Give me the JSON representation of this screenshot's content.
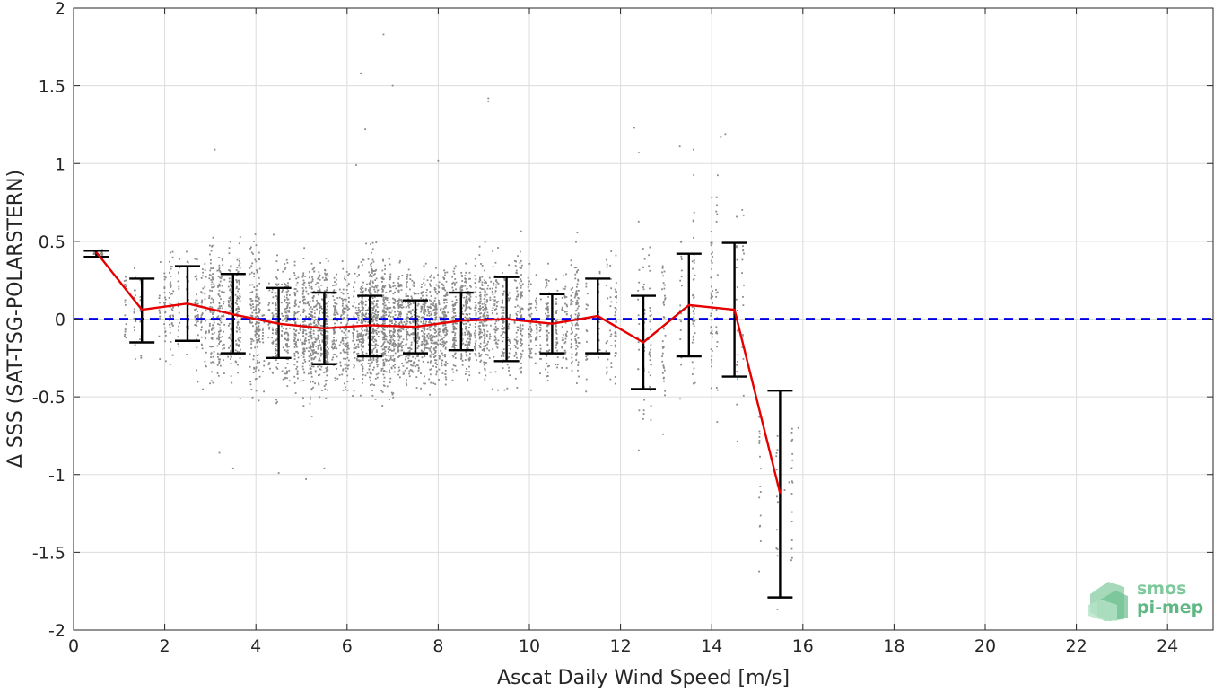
{
  "chart_data": {
    "type": "scatter",
    "title": "",
    "xlabel": "Ascat Daily Wind Speed [m/s]",
    "ylabel": "Δ SSS (SAT-TSG-POLARSTERN)",
    "xlim": [
      0,
      25
    ],
    "ylim": [
      -2,
      2
    ],
    "xticks": [
      0,
      2,
      4,
      6,
      8,
      10,
      12,
      14,
      16,
      18,
      20,
      22,
      24
    ],
    "xtick_labels": [
      "0",
      "2",
      "4",
      "6",
      "8",
      "10",
      "12",
      "14",
      "16",
      "18",
      "20",
      "22",
      "24"
    ],
    "yticks": [
      -2,
      -1.5,
      -1,
      -0.5,
      0,
      0.5,
      1,
      1.5,
      2
    ],
    "ytick_labels": [
      "-2",
      "-1.5",
      "-1",
      "-0.5",
      "0",
      "0.5",
      "1",
      "1.5",
      "2"
    ],
    "grid": true,
    "zero_line": {
      "y": 0,
      "color": "#0000e6",
      "style": "dashed"
    },
    "scatter_color": "#8a8a8a",
    "series": [
      {
        "color": "#e60000",
        "x": [
          0.5,
          1.5,
          2.5,
          3.5,
          4.5,
          5.5,
          6.5,
          7.5,
          8.5,
          9.5,
          10.5,
          11.5,
          12.5,
          13.5,
          14.5,
          15.5
        ],
        "y": [
          0.43,
          0.06,
          0.1,
          0.03,
          -0.03,
          -0.06,
          -0.04,
          -0.05,
          -0.01,
          0.0,
          -0.03,
          0.02,
          -0.15,
          0.09,
          0.06,
          -1.12
        ],
        "err_low": [
          0.4,
          -0.15,
          -0.14,
          -0.22,
          -0.25,
          -0.29,
          -0.24,
          -0.22,
          -0.2,
          -0.27,
          -0.22,
          -0.22,
          -0.45,
          -0.24,
          -0.37,
          -1.79
        ],
        "err_high": [
          0.44,
          0.26,
          0.34,
          0.29,
          0.2,
          0.17,
          0.15,
          0.12,
          0.17,
          0.27,
          0.16,
          0.26,
          0.15,
          0.42,
          0.49,
          -0.46
        ]
      }
    ],
    "scatter_density": [
      {
        "x0": 0.3,
        "x1": 0.8,
        "n": 25,
        "mean": 0.42,
        "sd": 0.02
      },
      {
        "x0": 1.0,
        "x1": 2.0,
        "n": 70,
        "mean": 0.05,
        "sd": 0.14
      },
      {
        "x0": 2.0,
        "x1": 3.0,
        "n": 220,
        "mean": 0.08,
        "sd": 0.17
      },
      {
        "x0": 3.0,
        "x1": 4.0,
        "n": 380,
        "mean": 0.03,
        "sd": 0.22
      },
      {
        "x0": 4.0,
        "x1": 5.0,
        "n": 420,
        "mean": -0.03,
        "sd": 0.2
      },
      {
        "x0": 5.0,
        "x1": 6.0,
        "n": 650,
        "mean": -0.06,
        "sd": 0.2
      },
      {
        "x0": 6.0,
        "x1": 7.0,
        "n": 800,
        "mean": -0.04,
        "sd": 0.2
      },
      {
        "x0": 7.0,
        "x1": 8.0,
        "n": 700,
        "mean": -0.05,
        "sd": 0.17
      },
      {
        "x0": 8.0,
        "x1": 9.0,
        "n": 600,
        "mean": -0.01,
        "sd": 0.17
      },
      {
        "x0": 9.0,
        "x1": 10.0,
        "n": 380,
        "mean": 0.0,
        "sd": 0.2
      },
      {
        "x0": 10.0,
        "x1": 11.0,
        "n": 260,
        "mean": -0.03,
        "sd": 0.17
      },
      {
        "x0": 11.0,
        "x1": 12.0,
        "n": 180,
        "mean": 0.02,
        "sd": 0.2
      },
      {
        "x0": 12.0,
        "x1": 13.0,
        "n": 110,
        "mean": -0.15,
        "sd": 0.28
      },
      {
        "x0": 13.0,
        "x1": 14.0,
        "n": 80,
        "mean": 0.09,
        "sd": 0.3
      },
      {
        "x0": 14.0,
        "x1": 15.0,
        "n": 80,
        "mean": 0.06,
        "sd": 0.4
      },
      {
        "x0": 15.0,
        "x1": 16.0,
        "n": 45,
        "mean": -1.12,
        "sd": 0.3
      }
    ],
    "outliers": [
      {
        "x": 6.8,
        "y": 1.83
      },
      {
        "x": 6.3,
        "y": 1.58
      },
      {
        "x": 7.0,
        "y": 1.5
      },
      {
        "x": 9.1,
        "y": 1.4
      },
      {
        "x": 9.1,
        "y": 1.42
      },
      {
        "x": 12.3,
        "y": 1.23
      },
      {
        "x": 6.4,
        "y": 1.22
      },
      {
        "x": 14.3,
        "y": 1.19
      },
      {
        "x": 3.1,
        "y": 1.09
      },
      {
        "x": 13.6,
        "y": 1.09
      },
      {
        "x": 13.3,
        "y": 1.11
      },
      {
        "x": 8.0,
        "y": 1.02
      },
      {
        "x": 6.2,
        "y": 0.99
      },
      {
        "x": 12.4,
        "y": 1.07
      },
      {
        "x": 14.2,
        "y": 1.17
      },
      {
        "x": 5.5,
        "y": -0.96
      },
      {
        "x": 4.5,
        "y": -0.99
      },
      {
        "x": 5.1,
        "y": -1.03
      },
      {
        "x": 3.5,
        "y": -0.96
      },
      {
        "x": 3.2,
        "y": -0.86
      },
      {
        "x": 15.9,
        "y": -0.7
      },
      {
        "x": 15.6,
        "y": -1.1
      },
      {
        "x": 15.7,
        "y": -1.05
      }
    ]
  },
  "logo": {
    "line1": "smos",
    "line2": "pi-mep"
  }
}
